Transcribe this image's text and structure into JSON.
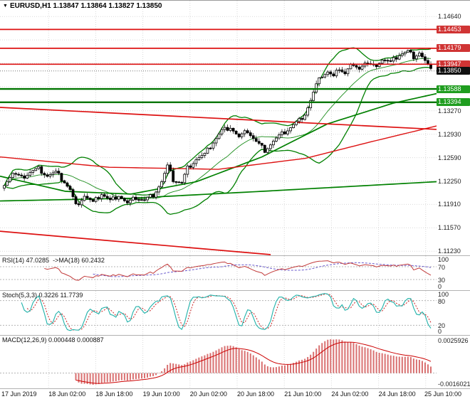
{
  "header": {
    "dropdown_icon": "▼",
    "symbol": "EURUSD,H1",
    "open": "1.13847",
    "high": "1.13864",
    "low": "1.13827",
    "close": "1.13850"
  },
  "colors": {
    "background": "#ffffff",
    "grid": "#d9d9d9",
    "bull_body": "#ffffff",
    "bear_body": "#000000",
    "candle_outline": "#000000",
    "bollinger": "#008000",
    "ma_green": "#008000",
    "ma_red": "#dd1111",
    "trendline_red": "#dd1111",
    "resistance": "#dd1111",
    "support": "#007500",
    "current_price_line": "#777777",
    "rsi_line": "#c23b3b",
    "rsi_ma": "#6a5acd",
    "stoch_k": "#20b2aa",
    "stoch_d": "#cc2222",
    "macd_hist": "#d97070",
    "macd_signal": "#cc0000",
    "axis_text": "#222222"
  },
  "price_axis": {
    "plain_labels": [
      {
        "text": "1.14640",
        "price": 1.1464
      },
      {
        "text": "1.13270",
        "price": 1.1327
      },
      {
        "text": "1.12930",
        "price": 1.1293
      },
      {
        "text": "1.12590",
        "price": 1.1259
      },
      {
        "text": "1.12250",
        "price": 1.1225
      },
      {
        "text": "1.11910",
        "price": 1.1191
      },
      {
        "text": "1.11570",
        "price": 1.1157
      },
      {
        "text": "1.11230",
        "price": 1.1123
      }
    ],
    "grid_prices": [
      1.1464,
      1.143,
      1.1396,
      1.1362,
      1.1327,
      1.1293,
      1.1259,
      1.1225,
      1.1191,
      1.1157,
      1.1123
    ],
    "badges": [
      {
        "text": "1.14453",
        "price": 1.14453,
        "type": "red"
      },
      {
        "text": "1.14179",
        "price": 1.14179,
        "type": "red"
      },
      {
        "text": "1.13947",
        "price": 1.13947,
        "type": "red"
      },
      {
        "text": "1.13850",
        "price": 1.1385,
        "type": "black"
      },
      {
        "text": "1.13588",
        "price": 1.13588,
        "type": "green"
      },
      {
        "text": "1.13394",
        "price": 1.13394,
        "type": "green"
      }
    ]
  },
  "time_axis": {
    "labels": [
      "17 Jun 2019",
      "18 Jun 02:00",
      "18 Jun 18:00",
      "19 Jun 10:00",
      "20 Jun 02:00",
      "20 Jun 18:00",
      "21 Jun 10:00",
      "24 Jun 02:00",
      "24 Jun 18:00",
      "25 Jun 10:00"
    ]
  },
  "panels": {
    "rsi": {
      "label_left": "RSI(14) 47.0285",
      "label_right": "->MA(18) 60.2432",
      "scale_labels": [
        100,
        70,
        30,
        0
      ],
      "level_lines": [
        70,
        30
      ]
    },
    "stoch": {
      "label": "Stoch(5,3,3) 0.3226 11.7739",
      "scale_labels": [
        100,
        80,
        20,
        0
      ],
      "level_lines": [
        80,
        20
      ]
    },
    "macd": {
      "label": "MACD(12,26,9) 0.000448 0.000887",
      "scale_top": "0.0025926",
      "scale_bottom": "-0.0016021"
    }
  },
  "chart_data": {
    "type": "candlestick",
    "symbol": "EURUSD",
    "timeframe": "H1",
    "visible_price_range": {
      "top": 1.1487,
      "bottom": 1.1117
    },
    "levels": {
      "resistance": [
        1.14453,
        1.14179,
        1.13947
      ],
      "support": [
        1.13588,
        1.13394
      ],
      "current_price": 1.1385
    },
    "candles": {
      "count": 150,
      "noise_amp": 0.00035,
      "wick_amp": 0.0005,
      "path": [
        [
          0,
          1.1222
        ],
        [
          3,
          1.1236
        ],
        [
          6,
          1.1229
        ],
        [
          9,
          1.1238
        ],
        [
          12,
          1.1243
        ],
        [
          15,
          1.1233
        ],
        [
          18,
          1.1237
        ],
        [
          21,
          1.1224
        ],
        [
          23,
          1.1212
        ],
        [
          25,
          1.1189
        ],
        [
          28,
          1.1204
        ],
        [
          31,
          1.1193
        ],
        [
          34,
          1.1207
        ],
        [
          37,
          1.1196
        ],
        [
          40,
          1.1205
        ],
        [
          43,
          1.1192
        ],
        [
          46,
          1.1201
        ],
        [
          49,
          1.1197
        ],
        [
          52,
          1.1205
        ],
        [
          55,
          1.1224
        ],
        [
          57,
          1.1246
        ],
        [
          59,
          1.1227
        ],
        [
          62,
          1.1222
        ],
        [
          64,
          1.1244
        ],
        [
          67,
          1.1257
        ],
        [
          70,
          1.1263
        ],
        [
          73,
          1.1282
        ],
        [
          76,
          1.1298
        ],
        [
          79,
          1.1304
        ],
        [
          82,
          1.1288
        ],
        [
          85,
          1.1298
        ],
        [
          88,
          1.1282
        ],
        [
          91,
          1.127
        ],
        [
          94,
          1.1283
        ],
        [
          97,
          1.1293
        ],
        [
          100,
          1.1303
        ],
        [
          103,
          1.1313
        ],
        [
          105,
          1.1323
        ],
        [
          107,
          1.1342
        ],
        [
          109,
          1.1364
        ],
        [
          111,
          1.1379
        ],
        [
          113,
          1.1384
        ],
        [
          115,
          1.1376
        ],
        [
          117,
          1.139
        ],
        [
          119,
          1.1382
        ],
        [
          121,
          1.1394
        ],
        [
          123,
          1.1387
        ],
        [
          126,
          1.1397
        ],
        [
          129,
          1.1391
        ],
        [
          132,
          1.1402
        ],
        [
          135,
          1.1397
        ],
        [
          138,
          1.1409
        ],
        [
          141,
          1.1413
        ],
        [
          143,
          1.1406
        ],
        [
          145,
          1.1412
        ],
        [
          147,
          1.1399
        ],
        [
          149,
          1.1385
        ]
      ]
    },
    "bollinger": {
      "period": 20,
      "deviation": 2
    },
    "moving_averages": {
      "green_mid": [
        [
          0,
          1.1232
        ],
        [
          0.15,
          1.121
        ],
        [
          0.3,
          1.1206
        ],
        [
          0.45,
          1.1224
        ],
        [
          0.6,
          1.126
        ],
        [
          0.75,
          1.1308
        ],
        [
          0.9,
          1.1338
        ],
        [
          1,
          1.1352
        ]
      ],
      "green_slow": [
        [
          0,
          1.1196
        ],
        [
          0.3,
          1.12
        ],
        [
          0.6,
          1.121
        ],
        [
          1,
          1.1224
        ]
      ],
      "red_ma": [
        [
          0,
          1.126
        ],
        [
          0.25,
          1.1245
        ],
        [
          0.5,
          1.1242
        ],
        [
          0.7,
          1.1258
        ],
        [
          0.85,
          1.1282
        ],
        [
          1,
          1.1305
        ]
      ]
    },
    "trendlines": {
      "upper_red": [
        [
          0,
          1.1332
        ],
        [
          1,
          1.13
        ]
      ],
      "lower_red": [
        [
          0,
          1.1152
        ],
        [
          0.62,
          1.1118
        ]
      ]
    },
    "indicators": {
      "rsi": {
        "period": 14,
        "ma_period": 18,
        "current": 47.0285,
        "ma_current": 60.2432
      },
      "stoch": {
        "k": 5,
        "d": 3,
        "slowing": 3,
        "current_k": 0.3226,
        "current_d": 11.7739
      },
      "macd": {
        "fast": 12,
        "slow": 26,
        "signal": 9,
        "current_macd": 0.000448,
        "current_signal": 0.000887
      }
    }
  }
}
